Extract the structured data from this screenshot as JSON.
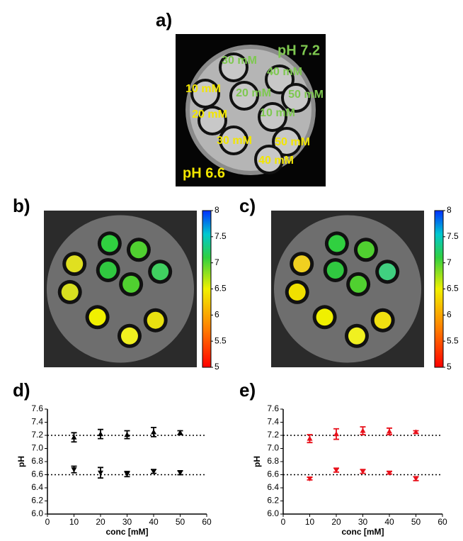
{
  "panels": {
    "a": {
      "label": "a)",
      "annotations": [
        {
          "text": "pH 7.2",
          "color": "#7ec850"
        },
        {
          "text": "30 mM",
          "color": "#7ec850"
        },
        {
          "text": "40 mM",
          "color": "#7ec850"
        },
        {
          "text": "20 mM",
          "color": "#7ec850"
        },
        {
          "text": "50 mM",
          "color": "#7ec850"
        },
        {
          "text": "10 mM",
          "color": "#7ec850"
        },
        {
          "text": "10 mM",
          "color": "#f2e600"
        },
        {
          "text": "20 mM",
          "color": "#f2e600"
        },
        {
          "text": "30 mM",
          "color": "#f2e600"
        },
        {
          "text": "50 mM",
          "color": "#f2e600"
        },
        {
          "text": "40 mM",
          "color": "#f2e600"
        },
        {
          "text": "pH 6.6",
          "color": "#f2e600"
        }
      ]
    },
    "b": {
      "label": "b)",
      "colorbar": {
        "ylim": [
          5,
          8
        ],
        "ticks": [
          5,
          5.5,
          6,
          6.5,
          7,
          7.5,
          8
        ]
      }
    },
    "c": {
      "label": "c)",
      "colorbar": {
        "ylim": [
          5,
          8
        ],
        "ticks": [
          5,
          5.5,
          6,
          6.5,
          7,
          7.5,
          8
        ]
      }
    }
  },
  "chart_data": [
    {
      "type": "scatter",
      "label": "d)",
      "x_label": "conc [mM]",
      "y_label": "pH",
      "x": [
        10,
        20,
        30,
        40,
        50
      ],
      "xlim": [
        0,
        60
      ],
      "xticks": [
        0,
        10,
        20,
        30,
        40,
        50,
        60
      ],
      "ylim": [
        6,
        7.6
      ],
      "yticks": [
        {
          "value": 6,
          "label": "6.0"
        },
        6.2,
        6.4,
        6.6,
        6.8,
        {
          "value": 7,
          "label": "7.0"
        },
        7.2,
        7.4,
        7.6
      ],
      "reference_lines": [
        7.2,
        6.6
      ],
      "series": [
        {
          "color": "#000000",
          "values": [
            7.17,
            7.22,
            7.21,
            7.25,
            7.24
          ],
          "errors": [
            0.07,
            0.07,
            0.06,
            0.07,
            0.03
          ]
        },
        {
          "color": "#000000",
          "values": [
            6.68,
            6.63,
            6.61,
            6.65,
            6.63
          ],
          "errors": [
            0.05,
            0.08,
            0.04,
            0.03,
            0.03
          ]
        }
      ]
    },
    {
      "type": "scatter",
      "label": "e)",
      "x_label": "conc [mM]",
      "y_label": "pH",
      "x": [
        10,
        20,
        30,
        40,
        50
      ],
      "xlim": [
        0,
        60
      ],
      "xticks": [
        0,
        10,
        20,
        30,
        40,
        50,
        60
      ],
      "ylim": [
        6,
        7.6
      ],
      "yticks": [
        {
          "value": 6,
          "label": "6.0"
        },
        6.2,
        6.4,
        6.6,
        6.8,
        {
          "value": 7,
          "label": "7.0"
        },
        7.2,
        7.4,
        7.6
      ],
      "reference_lines": [
        7.2,
        6.6
      ],
      "series": [
        {
          "color": "#e8101a",
          "values": [
            7.15,
            7.22,
            7.27,
            7.26,
            7.25
          ],
          "errors": [
            0.06,
            0.08,
            0.06,
            0.05,
            0.02
          ]
        },
        {
          "color": "#e8101a",
          "values": [
            6.54,
            6.67,
            6.65,
            6.63,
            6.54
          ],
          "errors": [
            0.02,
            0.03,
            0.03,
            0.02,
            0.03
          ]
        }
      ]
    }
  ]
}
